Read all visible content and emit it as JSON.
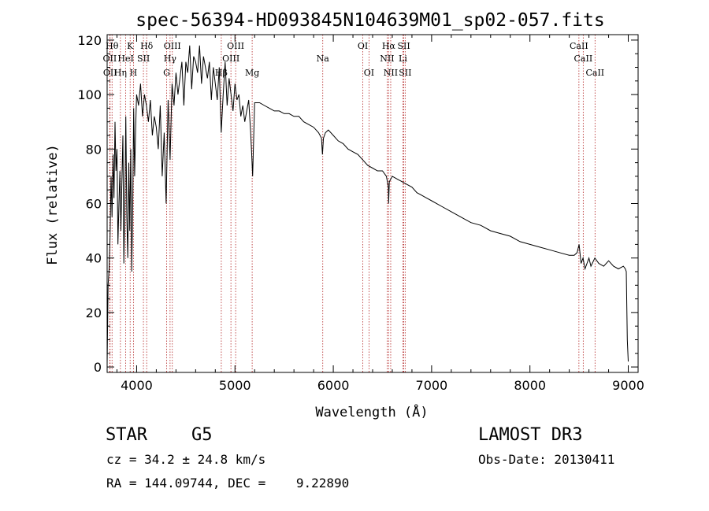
{
  "chart_data": {
    "type": "line",
    "title": "spec-56394-HD093845N104639M01_sp02-057.fits",
    "xlabel": "Wavelength (Å)",
    "ylabel": "Flux (relative)",
    "xlim": [
      3700,
      9100
    ],
    "ylim": [
      -2,
      122
    ],
    "xticks": [
      4000,
      5000,
      6000,
      7000,
      8000,
      9000
    ],
    "yticks": [
      0,
      20,
      40,
      60,
      80,
      100,
      120
    ],
    "series": [
      {
        "name": "flux",
        "x": [
          3700,
          3710,
          3720,
          3730,
          3740,
          3750,
          3760,
          3770,
          3780,
          3790,
          3800,
          3810,
          3820,
          3830,
          3840,
          3850,
          3860,
          3870,
          3880,
          3890,
          3900,
          3910,
          3920,
          3930,
          3940,
          3950,
          3960,
          3970,
          3980,
          3990,
          4000,
          4020,
          4040,
          4060,
          4080,
          4100,
          4120,
          4140,
          4160,
          4180,
          4200,
          4220,
          4240,
          4260,
          4280,
          4300,
          4320,
          4340,
          4360,
          4380,
          4400,
          4420,
          4440,
          4460,
          4480,
          4500,
          4520,
          4540,
          4560,
          4580,
          4600,
          4620,
          4640,
          4660,
          4680,
          4700,
          4720,
          4740,
          4760,
          4780,
          4800,
          4820,
          4840,
          4860,
          4880,
          4900,
          4920,
          4940,
          4960,
          4980,
          5000,
          5020,
          5040,
          5060,
          5080,
          5100,
          5120,
          5140,
          5160,
          5170,
          5180,
          5200,
          5250,
          5300,
          5350,
          5400,
          5450,
          5500,
          5550,
          5600,
          5650,
          5700,
          5750,
          5800,
          5850,
          5880,
          5890,
          5900,
          5920,
          5950,
          6000,
          6050,
          6100,
          6150,
          6200,
          6250,
          6300,
          6350,
          6400,
          6450,
          6500,
          6540,
          6560,
          6563,
          6570,
          6600,
          6650,
          6700,
          6750,
          6800,
          6850,
          6900,
          6950,
          7000,
          7100,
          7200,
          7300,
          7400,
          7500,
          7600,
          7700,
          7800,
          7900,
          8000,
          8100,
          8200,
          8300,
          8400,
          8450,
          8480,
          8500,
          8520,
          8540,
          8560,
          8600,
          8620,
          8660,
          8700,
          8750,
          8800,
          8850,
          8900,
          8950,
          8970,
          8980,
          8990,
          9000
        ],
        "values": [
          1,
          30,
          36,
          48,
          70,
          55,
          78,
          62,
          90,
          72,
          80,
          45,
          60,
          72,
          50,
          68,
          85,
          38,
          60,
          92,
          55,
          40,
          75,
          50,
          80,
          35,
          60,
          95,
          70,
          88,
          100,
          96,
          104,
          92,
          100,
          96,
          90,
          98,
          85,
          92,
          88,
          80,
          96,
          70,
          86,
          60,
          98,
          76,
          104,
          96,
          108,
          100,
          106,
          112,
          96,
          112,
          108,
          118,
          102,
          114,
          112,
          108,
          118,
          104,
          114,
          110,
          106,
          112,
          98,
          110,
          104,
          98,
          110,
          86,
          100,
          112,
          96,
          106,
          100,
          94,
          104,
          98,
          100,
          92,
          96,
          90,
          94,
          98,
          86,
          78,
          70,
          97,
          97,
          96,
          95,
          94,
          94,
          93,
          93,
          92,
          92,
          90,
          89,
          88,
          86,
          84,
          78,
          84,
          86,
          87,
          85,
          83,
          82,
          80,
          79,
          78,
          76,
          74,
          73,
          72,
          72,
          70,
          66,
          60,
          68,
          70,
          69,
          68,
          67,
          66,
          64,
          63,
          62,
          61,
          59,
          57,
          55,
          53,
          52,
          50,
          49,
          48,
          46,
          45,
          44,
          43,
          42,
          41,
          41,
          42,
          45,
          38,
          40,
          36,
          40,
          37,
          40,
          38,
          37,
          39,
          37,
          36,
          37,
          36,
          35,
          10,
          2
        ]
      }
    ],
    "lines": [
      {
        "label": "Hθ",
        "x": 3750,
        "row": 1
      },
      {
        "label": "OII",
        "x": 3727,
        "row": 2
      },
      {
        "label": "OII",
        "x": 3730,
        "row": 3
      },
      {
        "label": "Hη",
        "x": 3835,
        "row": 3
      },
      {
        "label": "HeI",
        "x": 3889,
        "row": 2
      },
      {
        "label": "K",
        "x": 3934,
        "row": 1
      },
      {
        "label": "H",
        "x": 3968,
        "row": 3
      },
      {
        "label": "SII",
        "x": 4069,
        "row": 2
      },
      {
        "label": "Hδ",
        "x": 4102,
        "row": 1
      },
      {
        "label": "OIII",
        "x": 4363,
        "row": 1
      },
      {
        "label": "Hγ",
        "x": 4340,
        "row": 2
      },
      {
        "label": "G",
        "x": 4305,
        "row": 3
      },
      {
        "label": "Hβ",
        "x": 4861,
        "row": 3
      },
      {
        "label": "OIII",
        "x": 5007,
        "row": 1
      },
      {
        "label": "OIII",
        "x": 4959,
        "row": 2
      },
      {
        "label": "Mg",
        "x": 5175,
        "row": 3
      },
      {
        "label": "Na",
        "x": 5893,
        "row": 2
      },
      {
        "label": "OI",
        "x": 6300,
        "row": 1
      },
      {
        "label": "OI",
        "x": 6363,
        "row": 3
      },
      {
        "label": "Hα",
        "x": 6563,
        "row": 1
      },
      {
        "label": "NII",
        "x": 6548,
        "row": 2
      },
      {
        "label": "NII",
        "x": 6584,
        "row": 3
      },
      {
        "label": "SII",
        "x": 6717,
        "row": 1
      },
      {
        "label": "Li",
        "x": 6708,
        "row": 2
      },
      {
        "label": "SII",
        "x": 6731,
        "row": 3
      },
      {
        "label": "CaII",
        "x": 8498,
        "row": 1
      },
      {
        "label": "CaII",
        "x": 8542,
        "row": 2
      },
      {
        "label": "CaII",
        "x": 8662,
        "row": 3
      }
    ]
  },
  "info": {
    "object_type": "STAR",
    "subclass": "G5",
    "survey": "LAMOST DR3",
    "cz": "cz = 34.2 ± 24.8 km/s",
    "obs_date": "Obs-Date: 20130411",
    "coords": "RA = 144.09744, DEC =    9.22890"
  }
}
